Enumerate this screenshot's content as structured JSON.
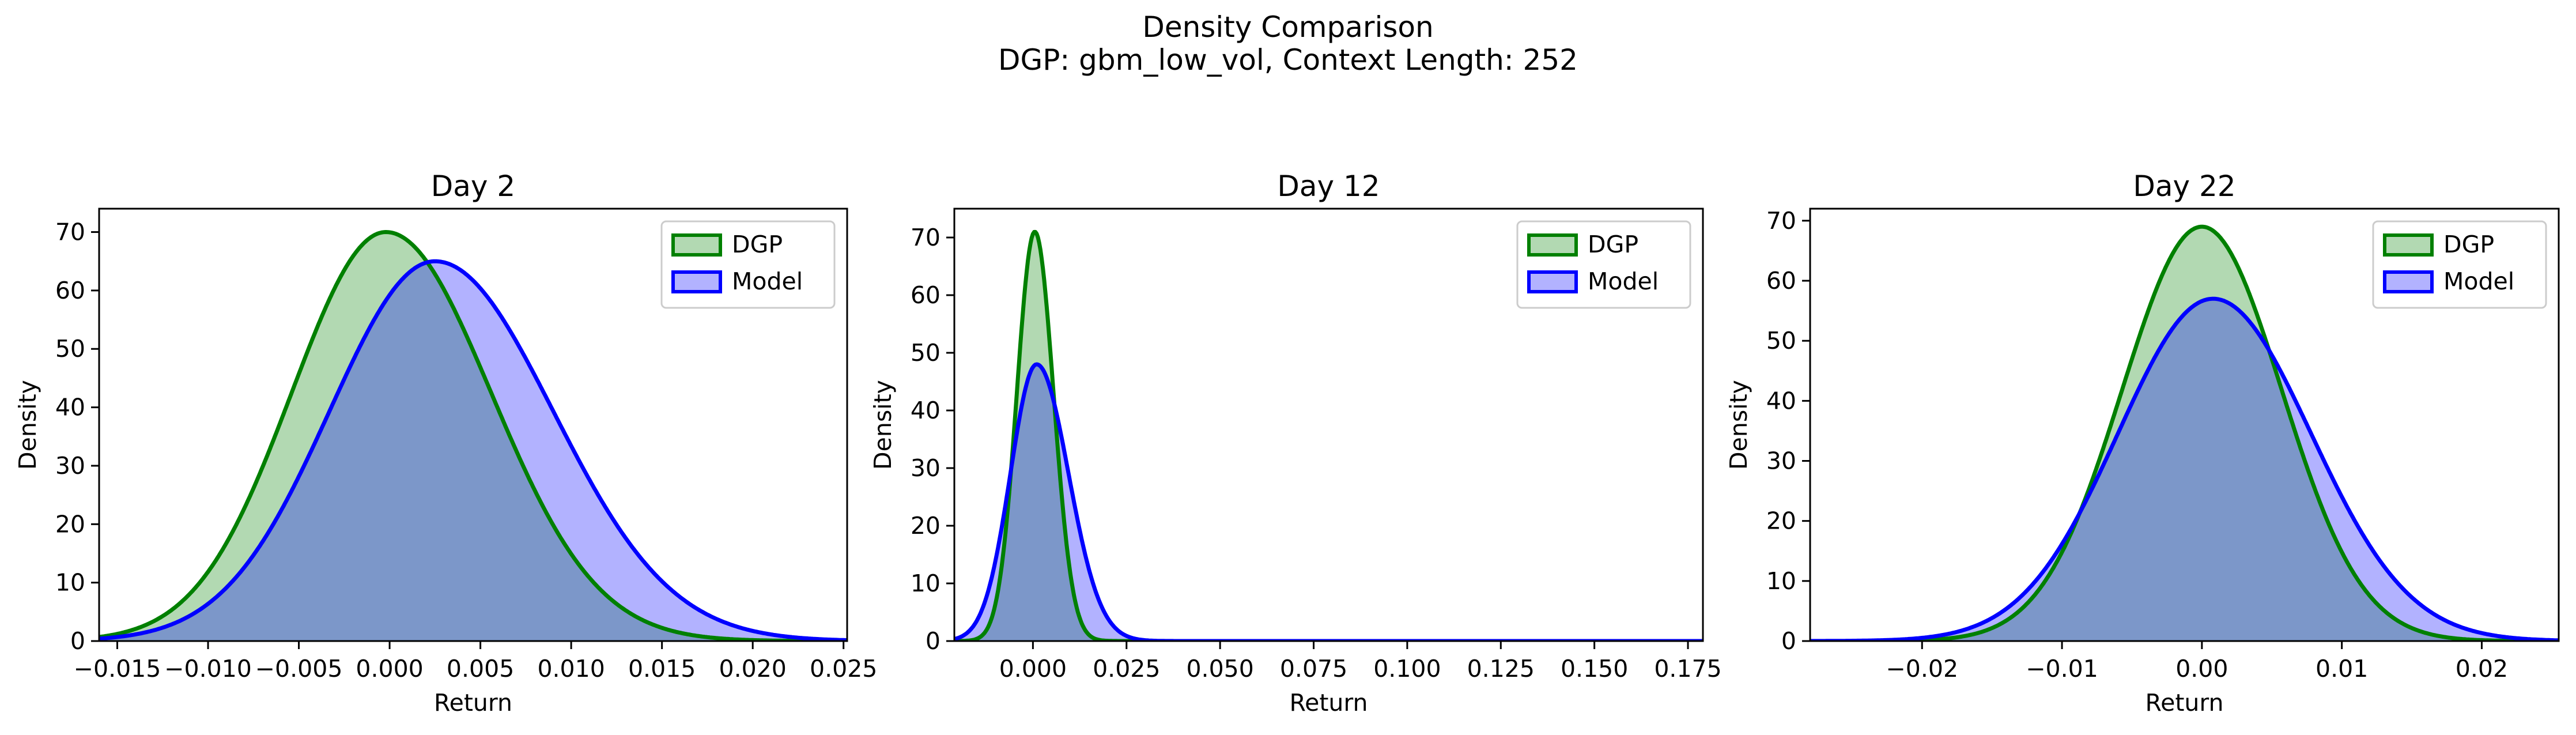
{
  "figure": {
    "title_line1": "Density Comparison",
    "title_line2": "DGP: gbm_low_vol, Context Length: 252"
  },
  "chart_data": [
    {
      "type": "area",
      "title": "Day 2",
      "xlabel": "Return",
      "ylabel": "Density",
      "xlim": [
        -0.016,
        0.0252
      ],
      "ylim": [
        0,
        74
      ],
      "xticks": [
        -0.015,
        -0.01,
        -0.005,
        0.0,
        0.005,
        0.01,
        0.015,
        0.02,
        0.025
      ],
      "xtick_labels": [
        "−0.015",
        "−0.010",
        "−0.005",
        "0.000",
        "0.005",
        "0.010",
        "0.015",
        "0.020",
        "0.025"
      ],
      "yticks": [
        0,
        10,
        20,
        30,
        40,
        50,
        60,
        70
      ],
      "ytick_labels": [
        "0",
        "10",
        "20",
        "30",
        "40",
        "50",
        "60",
        "70"
      ],
      "legend": "top-right",
      "series": [
        {
          "name": "DGP",
          "color": "#008000",
          "fill": "#b2d8b2",
          "peak": 70.0,
          "mode": -0.0002,
          "sd_left": 0.0052,
          "sd_right": 0.0058
        },
        {
          "name": "Model",
          "color": "#0000ff",
          "fill": "#b2b2ff",
          "peak": 65.0,
          "mode": 0.0025,
          "sd_left": 0.0058,
          "sd_right": 0.0065
        }
      ]
    },
    {
      "type": "area",
      "title": "Day 12",
      "xlabel": "Return",
      "ylabel": "Density",
      "xlim": [
        -0.021,
        0.179
      ],
      "ylim": [
        0,
        75
      ],
      "xticks": [
        0.0,
        0.025,
        0.05,
        0.075,
        0.1,
        0.125,
        0.15,
        0.175
      ],
      "xtick_labels": [
        "0.000",
        "0.025",
        "0.050",
        "0.075",
        "0.100",
        "0.125",
        "0.150",
        "0.175"
      ],
      "yticks": [
        0,
        10,
        20,
        30,
        40,
        50,
        60,
        70
      ],
      "ytick_labels": [
        "0",
        "10",
        "20",
        "30",
        "40",
        "50",
        "60",
        "70"
      ],
      "legend": "top-right",
      "series": [
        {
          "name": "DGP",
          "color": "#008000",
          "fill": "#b2d8b2",
          "peak": 71.0,
          "mode": 0.0005,
          "sd_left": 0.0048,
          "sd_right": 0.005
        },
        {
          "name": "Model",
          "color": "#0000ff",
          "fill": "#b2b2ff",
          "peak": 48.0,
          "mode": 0.001,
          "sd_left": 0.007,
          "sd_right": 0.0085
        }
      ]
    },
    {
      "type": "area",
      "title": "Day 22",
      "xlabel": "Return",
      "ylabel": "Density",
      "xlim": [
        -0.028,
        0.0255
      ],
      "ylim": [
        0,
        72
      ],
      "xticks": [
        -0.02,
        -0.01,
        0.0,
        0.01,
        0.02
      ],
      "xtick_labels": [
        "−0.02",
        "−0.01",
        "0.00",
        "0.01",
        "0.02"
      ],
      "yticks": [
        0,
        10,
        20,
        30,
        40,
        50,
        60,
        70
      ],
      "ytick_labels": [
        "0",
        "10",
        "20",
        "30",
        "40",
        "50",
        "60",
        "70"
      ],
      "legend": "top-right",
      "series": [
        {
          "name": "DGP",
          "color": "#008000",
          "fill": "#b2d8b2",
          "peak": 69.0,
          "mode": 0.0,
          "sd_left": 0.0057,
          "sd_right": 0.0057
        },
        {
          "name": "Model",
          "color": "#0000ff",
          "fill": "#b2b2ff",
          "peak": 57.0,
          "mode": 0.0008,
          "sd_left": 0.0068,
          "sd_right": 0.007
        }
      ]
    }
  ]
}
